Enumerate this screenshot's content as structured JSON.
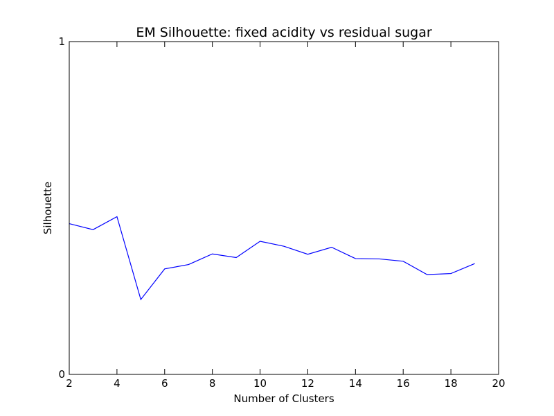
{
  "colors": {
    "background": "#ffffff",
    "axes": "#000000",
    "series_line": "#0000ff"
  },
  "chart_data": {
    "type": "line",
    "title": "EM Silhouette: fixed acidity vs residual sugar",
    "xlabel": "Number of Clusters",
    "ylabel": "Silhouette",
    "xlim": [
      2,
      20
    ],
    "ylim": [
      0,
      1
    ],
    "x_ticks": [
      "2",
      "4",
      "6",
      "8",
      "10",
      "12",
      "14",
      "16",
      "18",
      "20"
    ],
    "y_ticks": [
      "0",
      "1"
    ],
    "grid": false,
    "legend": "none",
    "series": [
      {
        "color": "#0000ff",
        "x": [
          2,
          3,
          4,
          5,
          6,
          7,
          8,
          9,
          10,
          11,
          12,
          13,
          14,
          15,
          16,
          17,
          18,
          19
        ],
        "y": [
          0.453,
          0.435,
          0.474,
          0.225,
          0.317,
          0.33,
          0.362,
          0.351,
          0.4,
          0.385,
          0.361,
          0.382,
          0.348,
          0.347,
          0.34,
          0.3,
          0.303,
          0.333
        ]
      }
    ]
  }
}
